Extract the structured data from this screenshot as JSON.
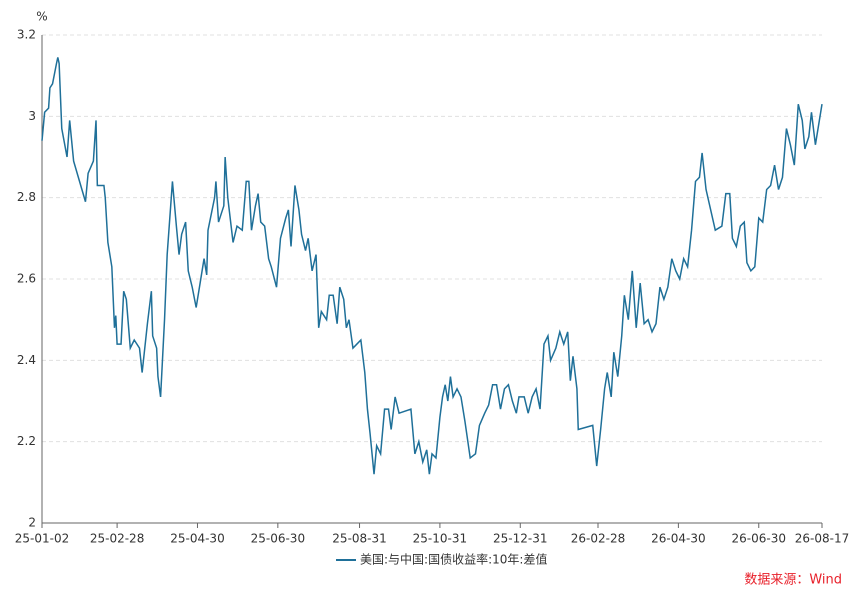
{
  "chart_data": {
    "type": "line",
    "y_unit": "%",
    "source": "数据来源：Wind",
    "x": [
      "25-01-02",
      "25-01-04",
      "25-01-07",
      "25-01-08",
      "25-01-10",
      "25-01-13",
      "25-01-14",
      "25-01-15",
      "25-01-17",
      "25-01-21",
      "25-01-23",
      "25-01-26",
      "25-02-04",
      "25-02-06",
      "25-02-10",
      "25-02-12",
      "25-02-13",
      "25-02-18",
      "25-02-19",
      "25-02-21",
      "25-02-24",
      "25-02-26",
      "25-02-27",
      "25-02-28",
      "25-03-03",
      "25-03-05",
      "25-03-07",
      "25-03-10",
      "25-03-13",
      "25-03-17",
      "25-03-19",
      "25-03-23",
      "25-03-26",
      "25-03-27",
      "25-03-30",
      "25-03-31",
      "25-04-02",
      "25-04-05",
      "25-04-07",
      "25-04-11",
      "25-04-14",
      "25-04-16",
      "25-04-18",
      "25-04-21",
      "25-04-23",
      "25-04-26",
      "25-04-29",
      "25-05-02",
      "25-05-05",
      "25-05-07",
      "25-05-08",
      "25-05-13",
      "25-05-14",
      "25-05-16",
      "25-05-20",
      "25-05-21",
      "25-05-23",
      "25-05-27",
      "25-05-30",
      "25-06-03",
      "25-06-06",
      "25-06-08",
      "25-06-10",
      "25-06-13",
      "25-06-15",
      "25-06-17",
      "25-06-20",
      "25-06-23",
      "25-06-25",
      "25-06-29",
      "25-07-02",
      "25-07-06",
      "25-07-08",
      "25-07-10",
      "25-07-13",
      "25-07-16",
      "25-07-18",
      "25-07-21",
      "25-07-23",
      "25-07-26",
      "25-07-29",
      "25-07-31",
      "25-08-02",
      "25-08-06",
      "25-08-08",
      "25-08-11",
      "25-08-14",
      "25-08-16",
      "25-08-19",
      "25-08-21",
      "25-08-23",
      "25-08-26",
      "25-08-29",
      "25-09-01",
      "25-09-04",
      "25-09-06",
      "25-09-08",
      "25-09-11",
      "25-09-13",
      "25-09-16",
      "25-09-19",
      "25-09-22",
      "25-09-24",
      "25-09-27",
      "25-09-30",
      "25-10-09",
      "25-10-12",
      "25-10-15",
      "25-10-18",
      "25-10-21",
      "25-10-23",
      "25-10-25",
      "25-10-28",
      "25-10-31",
      "25-11-02",
      "25-11-04",
      "25-11-06",
      "25-11-08",
      "25-11-10",
      "25-11-13",
      "25-11-16",
      "25-11-19",
      "25-11-23",
      "25-11-27",
      "25-11-30",
      "25-12-04",
      "25-12-07",
      "25-12-10",
      "25-12-13",
      "25-12-16",
      "25-12-19",
      "25-12-22",
      "25-12-25",
      "25-12-28",
      "25-12-30",
      "26-01-03",
      "26-01-06",
      "26-01-09",
      "26-01-12",
      "26-01-15",
      "26-01-18",
      "26-01-21",
      "26-01-23",
      "26-01-27",
      "26-01-30",
      "26-02-02",
      "26-02-05",
      "26-02-07",
      "26-02-09",
      "26-02-12",
      "26-02-13",
      "26-02-24",
      "26-02-27",
      "26-03-02",
      "26-03-05",
      "26-03-07",
      "26-03-10",
      "26-03-12",
      "26-03-15",
      "26-03-18",
      "26-03-20",
      "26-03-23",
      "26-03-26",
      "26-03-29",
      "26-04-01",
      "26-04-04",
      "26-04-07",
      "26-04-10",
      "26-04-13",
      "26-04-16",
      "26-04-19",
      "26-04-22",
      "26-04-25",
      "26-04-28",
      "26-05-01",
      "26-05-04",
      "26-05-07",
      "26-05-10",
      "26-05-13",
      "26-05-16",
      "26-05-18",
      "26-05-21",
      "26-05-28",
      "26-06-02",
      "26-06-05",
      "26-06-08",
      "26-06-10",
      "26-06-13",
      "26-06-16",
      "26-06-19",
      "26-06-21",
      "26-06-24",
      "26-06-27",
      "26-06-30",
      "26-07-03",
      "26-07-06",
      "26-07-09",
      "26-07-12",
      "26-07-15",
      "26-07-18",
      "26-07-21",
      "26-07-24",
      "26-07-27",
      "26-07-30",
      "26-08-02",
      "26-08-04",
      "26-08-07",
      "26-08-09",
      "26-08-12",
      "26-08-17"
    ],
    "series": [
      {
        "name": "美国:与中国:国债收益率:10年:差值",
        "color": "#1f7099",
        "values": [
          2.94,
          3.01,
          3.02,
          3.07,
          3.08,
          3.13,
          3.145,
          3.13,
          2.97,
          2.9,
          2.99,
          2.89,
          2.79,
          2.86,
          2.89,
          2.99,
          2.83,
          2.83,
          2.8,
          2.69,
          2.63,
          2.48,
          2.51,
          2.44,
          2.44,
          2.57,
          2.55,
          2.43,
          2.45,
          2.43,
          2.37,
          2.49,
          2.57,
          2.46,
          2.43,
          2.36,
          2.31,
          2.5,
          2.66,
          2.84,
          2.73,
          2.66,
          2.71,
          2.74,
          2.62,
          2.58,
          2.53,
          2.59,
          2.65,
          2.61,
          2.72,
          2.8,
          2.84,
          2.74,
          2.78,
          2.9,
          2.8,
          2.69,
          2.73,
          2.72,
          2.84,
          2.84,
          2.72,
          2.78,
          2.81,
          2.74,
          2.73,
          2.65,
          2.63,
          2.58,
          2.7,
          2.75,
          2.77,
          2.68,
          2.83,
          2.77,
          2.71,
          2.67,
          2.7,
          2.62,
          2.66,
          2.48,
          2.52,
          2.5,
          2.56,
          2.56,
          2.49,
          2.58,
          2.55,
          2.48,
          2.5,
          2.43,
          2.44,
          2.45,
          2.37,
          2.28,
          2.22,
          2.12,
          2.19,
          2.17,
          2.28,
          2.28,
          2.23,
          2.31,
          2.27,
          2.28,
          2.17,
          2.2,
          2.15,
          2.18,
          2.12,
          2.17,
          2.16,
          2.26,
          2.31,
          2.34,
          2.3,
          2.36,
          2.31,
          2.33,
          2.31,
          2.25,
          2.16,
          2.17,
          2.24,
          2.27,
          2.29,
          2.34,
          2.34,
          2.28,
          2.33,
          2.34,
          2.3,
          2.27,
          2.31,
          2.31,
          2.27,
          2.31,
          2.33,
          2.28,
          2.44,
          2.46,
          2.4,
          2.43,
          2.47,
          2.44,
          2.47,
          2.35,
          2.41,
          2.33,
          2.23,
          2.24,
          2.14,
          2.23,
          2.33,
          2.37,
          2.31,
          2.42,
          2.36,
          2.46,
          2.56,
          2.5,
          2.62,
          2.48,
          2.59,
          2.49,
          2.5,
          2.47,
          2.49,
          2.58,
          2.55,
          2.58,
          2.65,
          2.62,
          2.6,
          2.65,
          2.63,
          2.72,
          2.84,
          2.85,
          2.91,
          2.82,
          2.72,
          2.73,
          2.81,
          2.81,
          2.7,
          2.68,
          2.73,
          2.74,
          2.64,
          2.62,
          2.63,
          2.75,
          2.74,
          2.82,
          2.83,
          2.88,
          2.82,
          2.85,
          2.97,
          2.93,
          2.88,
          3.03,
          2.99,
          2.92,
          2.95,
          3.01,
          2.93,
          3.03
        ]
      }
    ],
    "xlim": [
      "25-01-02",
      "26-08-17"
    ],
    "xticks": [
      "25-01-02",
      "25-02-28",
      "25-04-30",
      "25-06-30",
      "25-08-31",
      "25-10-31",
      "25-12-31",
      "26-02-28",
      "26-04-30",
      "26-06-30",
      "26-08-17"
    ],
    "ylim": [
      2,
      3.2
    ],
    "yticks": [
      2,
      2.2,
      2.4,
      2.6,
      2.8,
      3,
      3.2
    ],
    "grid": true
  }
}
